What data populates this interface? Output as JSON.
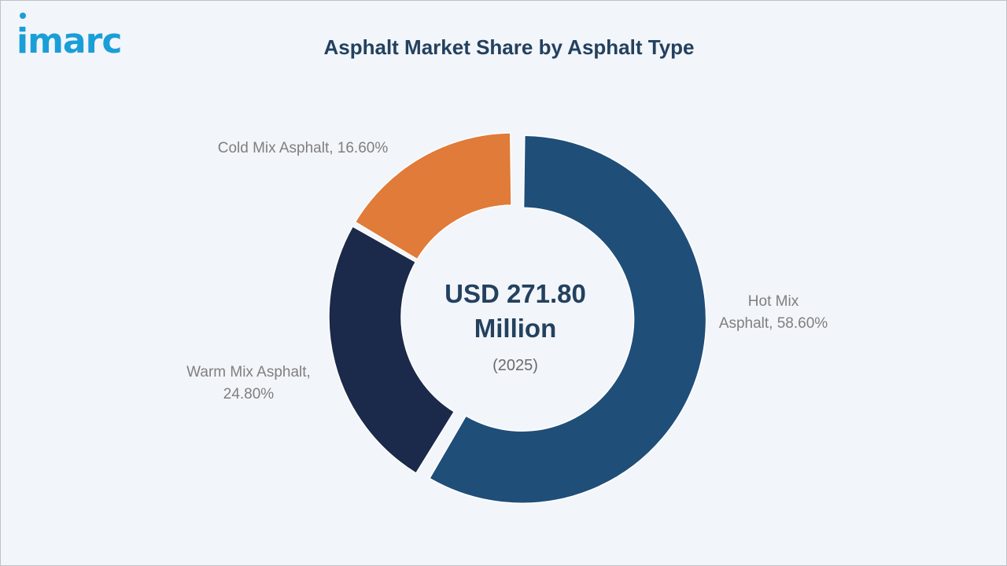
{
  "brand": {
    "logo_text": "imarc"
  },
  "colors": {
    "background": "#f2f5f9",
    "title": "#23415f",
    "logo": "#1a9ed8",
    "label": "#7f7f7f"
  },
  "chart_data": {
    "type": "pie",
    "variant": "donut",
    "title": "Asphalt Market Share by Asphalt Type",
    "center_text": {
      "line1": "USD 271.80",
      "line2": "Million",
      "line3": "(2025)"
    },
    "categories": [
      "Hot Mix Asphalt",
      "Warm Mix Asphalt",
      "Cold Mix Asphalt"
    ],
    "values": [
      58.6,
      24.8,
      16.6
    ],
    "unit": "%",
    "colors": [
      "#1f4e79",
      "#1b2a4a",
      "#e07b39"
    ],
    "exploded": [
      "Hot Mix Asphalt"
    ],
    "data_labels": [
      [
        "Hot Mix",
        "Asphalt, 58.60%"
      ],
      [
        "Warm Mix Asphalt,",
        "24.80%"
      ],
      [
        "Cold Mix Asphalt, 16.60%"
      ]
    ],
    "legend": "none"
  }
}
